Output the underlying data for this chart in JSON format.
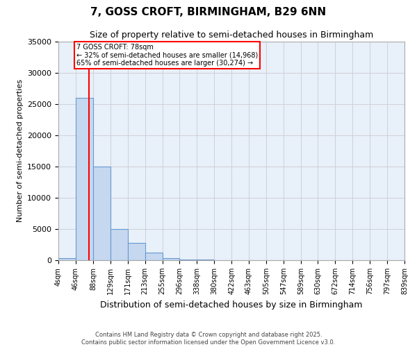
{
  "title": "7, GOSS CROFT, BIRMINGHAM, B29 6NN",
  "subtitle": "Size of property relative to semi-detached houses in Birmingham",
  "xlabel": "Distribution of semi-detached houses by size in Birmingham",
  "ylabel": "Number of semi-detached properties",
  "footer_line1": "Contains HM Land Registry data © Crown copyright and database right 2025.",
  "footer_line2": "Contains public sector information licensed under the Open Government Licence v3.0.",
  "property_size": 78,
  "annotation_line1": "7 GOSS CROFT: 78sqm",
  "annotation_line2": "← 32% of semi-detached houses are smaller (14,968)",
  "annotation_line3": "65% of semi-detached houses are larger (30,274) →",
  "bin_edges": [
    4,
    46,
    88,
    129,
    171,
    213,
    255,
    296,
    338,
    380,
    422,
    463,
    505,
    547,
    589,
    630,
    672,
    714,
    756,
    797,
    839
  ],
  "bin_counts": [
    300,
    26000,
    15000,
    5000,
    2800,
    1200,
    350,
    150,
    80,
    50,
    35,
    25,
    18,
    12,
    8,
    6,
    5,
    4,
    3,
    3
  ],
  "bar_color": "#c5d8f0",
  "bar_edge_color": "#6699cc",
  "vline_color": "red",
  "ylim": [
    0,
    35000
  ],
  "yticks": [
    0,
    5000,
    10000,
    15000,
    20000,
    25000,
    30000,
    35000
  ],
  "grid_color": "#cccccc",
  "background_color": "#e8f0fa",
  "tick_labels": [
    "4sqm",
    "46sqm",
    "88sqm",
    "129sqm",
    "171sqm",
    "213sqm",
    "255sqm",
    "296sqm",
    "338sqm",
    "380sqm",
    "422sqm",
    "463sqm",
    "505sqm",
    "547sqm",
    "589sqm",
    "630sqm",
    "672sqm",
    "714sqm",
    "756sqm",
    "797sqm",
    "839sqm"
  ]
}
